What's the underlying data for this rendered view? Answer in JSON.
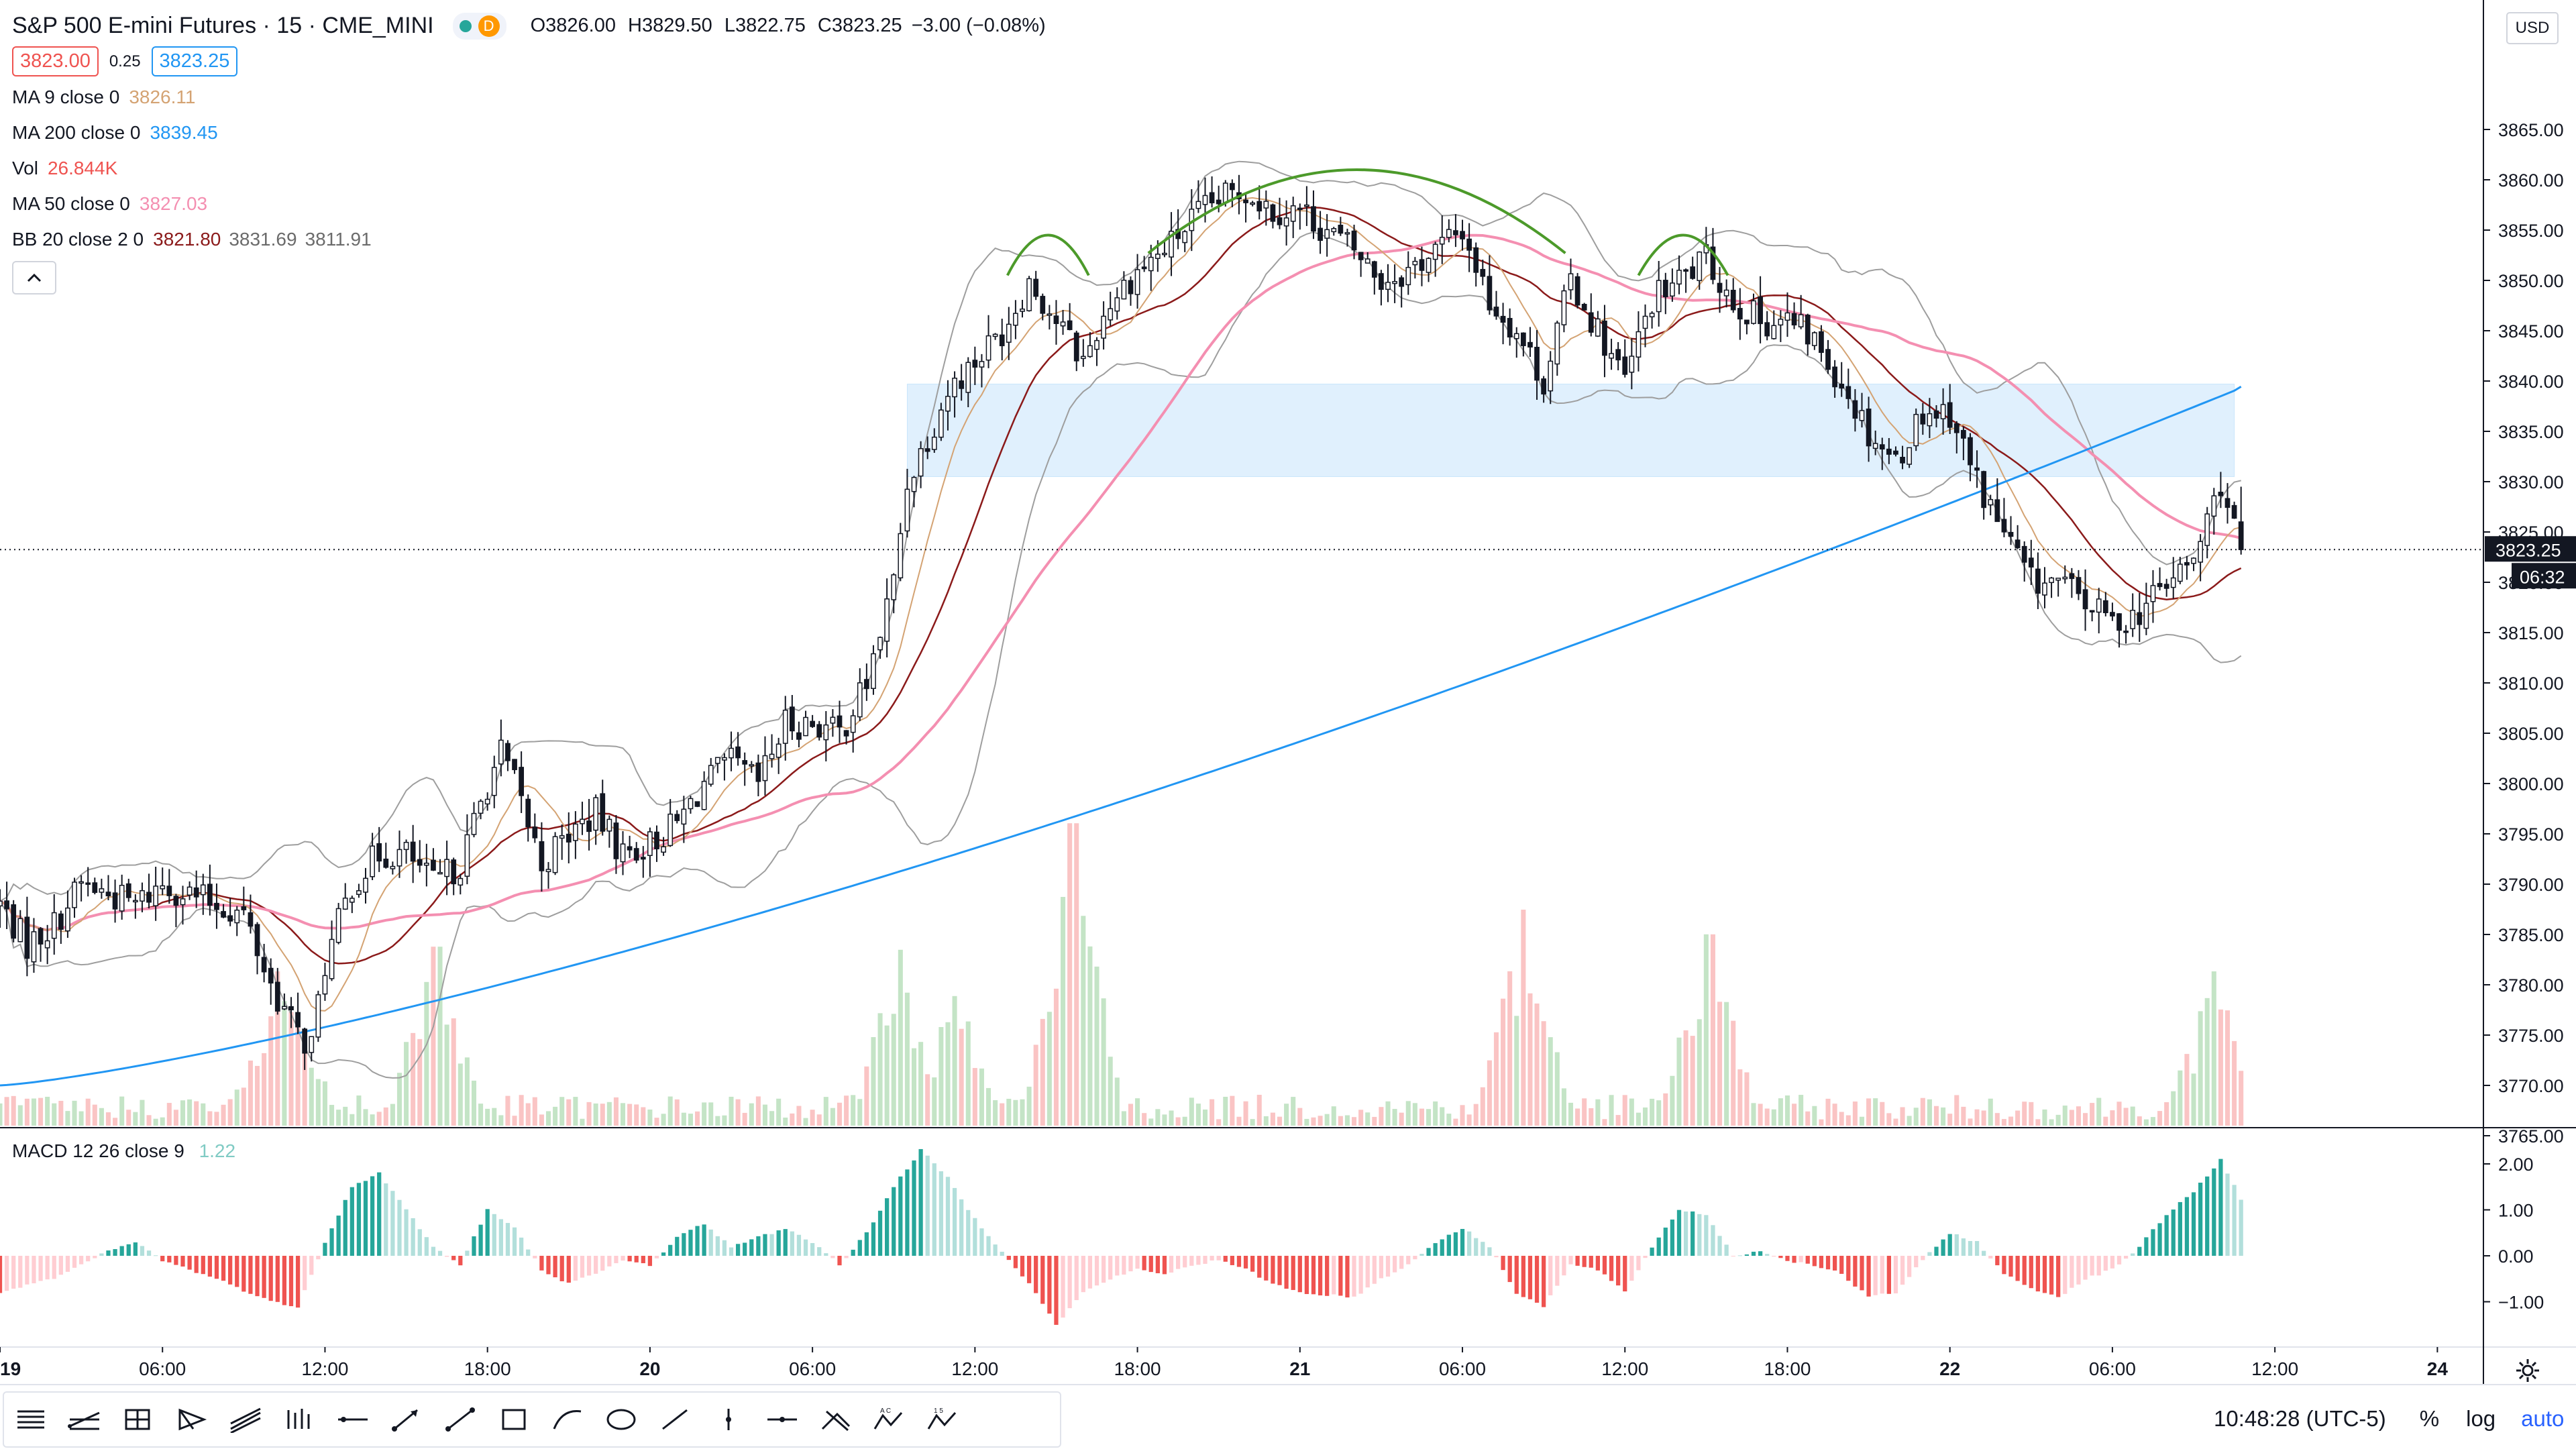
{
  "header": {
    "title": "S&P 500 E-mini Futures · 15 · CME_MINI",
    "status_dot": "green",
    "delay_badge": "D",
    "ohlc": {
      "o_label": "O",
      "o": "3826.00",
      "h_label": "H",
      "h": "3829.50",
      "l_label": "L",
      "l": "3822.75",
      "c_label": "C",
      "c": "3823.25",
      "change": "−3.00 (−0.08%)"
    },
    "sell_price": "3823.00",
    "spread": "0.25",
    "buy_price": "3823.25"
  },
  "indicators": [
    {
      "name": "MA 9 close 0",
      "value": "3826.11",
      "color": "#d4a373"
    },
    {
      "name": "MA 200 close 0",
      "value": "3839.45",
      "color": "#2196f3"
    },
    {
      "name": "Vol",
      "value": "26.844K",
      "color": "#ef5350"
    },
    {
      "name": "MA 50 close 0",
      "value": "3827.03",
      "color": "#f48fb1"
    },
    {
      "name": "BB 20 close 2 0",
      "value": "3821.80",
      "value2": "3831.69",
      "value3": "3811.91",
      "color": "#8b1a1a"
    }
  ],
  "macd": {
    "name": "MACD 12 26 close 9",
    "value": "1.22",
    "color": "#4db6ac"
  },
  "currency": "USD",
  "last_price_label": "3823.25",
  "countdown": "06:32",
  "clock": "10:48:28 (UTC-5)",
  "scale_buttons": {
    "percent": "%",
    "log": "log",
    "auto": "auto"
  },
  "icons": [
    "cursor-icon",
    "horizontal-line-icon",
    "pitchfork-icon",
    "rectangle-grid-icon",
    "gann-icon",
    "pattern-icon",
    "long-position-icon",
    "horizontal-ray-icon",
    "arrow-icon",
    "trend-line-icon",
    "rectangle-icon",
    "polyline-icon",
    "ellipse-icon",
    "line-icon",
    "vertical-line-icon",
    "cross-line-icon",
    "brush-icon",
    "abcd-icon",
    "elliott-icon"
  ],
  "chart_data": {
    "type": "candlestick",
    "price_axis": {
      "ticks": [
        3765,
        3770,
        3775,
        3780,
        3785,
        3790,
        3795,
        3800,
        3805,
        3810,
        3815,
        3820,
        3825,
        3830,
        3835,
        3840,
        3845,
        3850,
        3855,
        3860,
        3865
      ],
      "tick_labels": [
        "3765.00",
        "3770.00",
        "3775.00",
        "3780.00",
        "3785.00",
        "3790.00",
        "3795.00",
        "3800.00",
        "3805.00",
        "3810.00",
        "3815.00",
        "3820.00",
        "3825.00",
        "3830.00",
        "3835.00",
        "3840.00",
        "3845.00",
        "3850.00",
        "3855.00",
        "3860.00",
        "3865.00"
      ],
      "ylim": [
        3762,
        3868
      ]
    },
    "time_axis": {
      "labels": [
        "19",
        "06:00",
        "12:00",
        "18:00",
        "20",
        "06:00",
        "12:00",
        "18:00",
        "21",
        "06:00",
        "12:00",
        "18:00",
        "22",
        "06:00",
        "12:00",
        "24"
      ],
      "label_times": [
        0,
        6,
        12,
        18,
        24,
        30,
        36,
        42,
        48,
        54,
        60,
        66,
        72,
        78,
        84,
        90
      ],
      "xlim": [
        0,
        91.7
      ]
    },
    "last_candle_time": 82.75,
    "candle_interval_hours": 0.25,
    "price_path": [
      [
        0,
        3788
      ],
      [
        1,
        3784
      ],
      [
        2,
        3786
      ],
      [
        3,
        3790
      ],
      [
        4,
        3789
      ],
      [
        5,
        3788
      ],
      [
        6,
        3790
      ],
      [
        7,
        3789
      ],
      [
        8,
        3788
      ],
      [
        9,
        3787
      ],
      [
        10,
        3780
      ],
      [
        11,
        3775
      ],
      [
        11.5,
        3774
      ],
      [
        12,
        3782
      ],
      [
        13,
        3790
      ],
      [
        14,
        3793
      ],
      [
        15,
        3793
      ],
      [
        16,
        3790
      ],
      [
        17,
        3792
      ],
      [
        18,
        3800
      ],
      [
        18.5,
        3803
      ],
      [
        19,
        3800
      ],
      [
        20,
        3792
      ],
      [
        21,
        3795
      ],
      [
        22,
        3797
      ],
      [
        23,
        3793
      ],
      [
        24,
        3794
      ],
      [
        25,
        3796
      ],
      [
        26,
        3800
      ],
      [
        27,
        3802
      ],
      [
        28,
        3800
      ],
      [
        29,
        3806
      ],
      [
        30,
        3806
      ],
      [
        31,
        3805
      ],
      [
        32,
        3810
      ],
      [
        33,
        3820
      ],
      [
        33.5,
        3830
      ],
      [
        34,
        3833
      ],
      [
        35,
        3839
      ],
      [
        36,
        3842
      ],
      [
        37,
        3845
      ],
      [
        38,
        3850
      ],
      [
        39,
        3846
      ],
      [
        40,
        3842
      ],
      [
        41,
        3848
      ],
      [
        42,
        3851
      ],
      [
        43,
        3853
      ],
      [
        44,
        3856
      ],
      [
        45,
        3858
      ],
      [
        46,
        3859
      ],
      [
        47,
        3857
      ],
      [
        48,
        3857
      ],
      [
        49,
        3855
      ],
      [
        50,
        3853
      ],
      [
        51,
        3850
      ],
      [
        52,
        3851
      ],
      [
        53,
        3853
      ],
      [
        54,
        3855
      ],
      [
        55,
        3848
      ],
      [
        56,
        3845
      ],
      [
        57,
        3840
      ],
      [
        58,
        3850
      ],
      [
        59,
        3845
      ],
      [
        60,
        3840
      ],
      [
        61,
        3848
      ],
      [
        62,
        3850
      ],
      [
        63,
        3852
      ],
      [
        64,
        3848
      ],
      [
        65,
        3846
      ],
      [
        66,
        3846
      ],
      [
        67,
        3844
      ],
      [
        68,
        3840
      ],
      [
        69,
        3835
      ],
      [
        70,
        3832
      ],
      [
        71,
        3837
      ],
      [
        72,
        3837
      ],
      [
        73,
        3830
      ],
      [
        74,
        3825
      ],
      [
        75,
        3820
      ],
      [
        76,
        3820
      ],
      [
        77,
        3818
      ],
      [
        78,
        3816
      ],
      [
        79,
        3817
      ],
      [
        80,
        3820
      ],
      [
        81,
        3822
      ],
      [
        82,
        3830
      ],
      [
        82.75,
        3823.25
      ]
    ],
    "rectangle_zone": {
      "t_start": 33.5,
      "t_end": 82.5,
      "price_low": 3830.5,
      "price_high": 3839.7,
      "color": "#bbdefb"
    },
    "arcs": [
      {
        "t_start": 37.2,
        "t_end": 40.2,
        "peak_price": 3854.5
      },
      {
        "t_start": 42.4,
        "t_end": 57.8,
        "peak_price": 3861.0
      },
      {
        "t_start": 60.5,
        "t_end": 63.8,
        "peak_price": 3854.5
      }
    ],
    "volume_spikes": [
      [
        10.2,
        0.5
      ],
      [
        10.9,
        0.35
      ],
      [
        16.1,
        0.58
      ],
      [
        39.6,
        0.98
      ],
      [
        33.2,
        0.57
      ],
      [
        35.3,
        0.42
      ],
      [
        56.3,
        0.7
      ],
      [
        63.1,
        0.62
      ],
      [
        81.8,
        0.5
      ],
      [
        83,
        0.2
      ]
    ],
    "last_volume": "26.844K",
    "macd_axis": {
      "ticks": [
        2.0,
        1.0,
        0.0,
        -1.0
      ],
      "tick_labels": [
        "2.00",
        "1.00",
        "0.00",
        "−1.00"
      ],
      "ylim": [
        -2.0,
        2.3
      ]
    },
    "macd_samples": [
      [
        0,
        -0.8
      ],
      [
        2,
        -0.5
      ],
      [
        3,
        -0.2
      ],
      [
        4,
        0.1
      ],
      [
        5,
        0.3
      ],
      [
        6,
        -0.1
      ],
      [
        8,
        -0.5
      ],
      [
        10,
        -1.0
      ],
      [
        11,
        -1.1
      ],
      [
        12,
        0.3
      ],
      [
        13,
        1.5
      ],
      [
        14,
        1.8
      ],
      [
        15,
        1.0
      ],
      [
        16,
        0.2
      ],
      [
        17,
        -0.2
      ],
      [
        18,
        1.0
      ],
      [
        19,
        0.6
      ],
      [
        20,
        -0.3
      ],
      [
        21,
        -0.6
      ],
      [
        22,
        -0.4
      ],
      [
        23,
        -0.1
      ],
      [
        24,
        -0.2
      ],
      [
        25,
        0.4
      ],
      [
        26,
        0.7
      ],
      [
        27,
        0.2
      ],
      [
        28,
        0.4
      ],
      [
        29,
        0.6
      ],
      [
        30,
        0.3
      ],
      [
        31,
        -0.2
      ],
      [
        32,
        0.5
      ],
      [
        33,
        1.5
      ],
      [
        34,
        2.3
      ],
      [
        35,
        1.7
      ],
      [
        36,
        0.8
      ],
      [
        37,
        0.1
      ],
      [
        38,
        -0.6
      ],
      [
        39,
        -1.5
      ],
      [
        40,
        -0.8
      ],
      [
        41,
        -0.5
      ],
      [
        42,
        -0.3
      ],
      [
        43,
        -0.4
      ],
      [
        44,
        -0.2
      ],
      [
        45,
        -0.1
      ],
      [
        46,
        -0.3
      ],
      [
        47,
        -0.6
      ],
      [
        48,
        -0.8
      ],
      [
        50,
        -0.9
      ],
      [
        51,
        -0.5
      ],
      [
        52,
        -0.2
      ],
      [
        53,
        0.3
      ],
      [
        54,
        0.6
      ],
      [
        55,
        0.2
      ],
      [
        56,
        -0.8
      ],
      [
        57,
        -1.1
      ],
      [
        58,
        -0.2
      ],
      [
        59,
        -0.3
      ],
      [
        60,
        -0.8
      ],
      [
        61,
        0.2
      ],
      [
        62,
        1.0
      ],
      [
        63,
        0.9
      ],
      [
        64,
        0.0
      ],
      [
        65,
        0.1
      ],
      [
        66,
        -0.1
      ],
      [
        67,
        -0.2
      ],
      [
        68,
        -0.4
      ],
      [
        69,
        -0.9
      ],
      [
        70,
        -0.8
      ],
      [
        71,
        -0.1
      ],
      [
        72,
        0.5
      ],
      [
        73,
        0.3
      ],
      [
        74,
        -0.4
      ],
      [
        75,
        -0.7
      ],
      [
        76,
        -0.9
      ],
      [
        77,
        -0.5
      ],
      [
        78,
        -0.3
      ],
      [
        79,
        0.2
      ],
      [
        80,
        0.9
      ],
      [
        81,
        1.4
      ],
      [
        82,
        2.1
      ],
      [
        82.75,
        1.22
      ]
    ]
  }
}
